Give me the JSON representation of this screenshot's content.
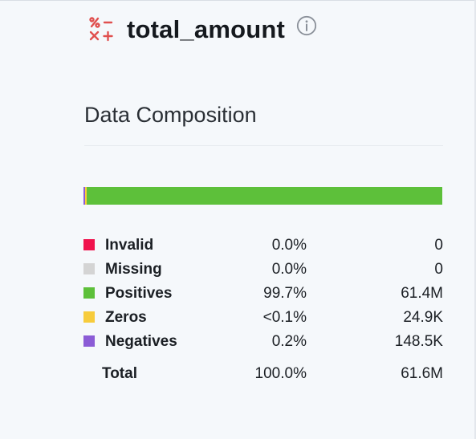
{
  "header": {
    "title": "total_amount",
    "type_icon": "numeric-ops-icon",
    "info_icon": "info-icon",
    "accent": "#e0504f"
  },
  "composition": {
    "title": "Data Composition",
    "bar": [
      {
        "name": "Invalid",
        "fraction": 0.0,
        "color": "#f0134d"
      },
      {
        "name": "Missing",
        "fraction": 0.0,
        "color": "#d4d4d4"
      },
      {
        "name": "Negatives",
        "fraction": 0.002,
        "color": "#8b5cd6"
      },
      {
        "name": "Zeros",
        "fraction": 0.0005,
        "color": "#f7cc3c"
      },
      {
        "name": "Positives",
        "fraction": 0.997,
        "color": "#5dc03a"
      }
    ],
    "legend": [
      {
        "label": "Invalid",
        "percent": "0.0%",
        "count": "0",
        "color": "#f0134d"
      },
      {
        "label": "Missing",
        "percent": "0.0%",
        "count": "0",
        "color": "#d4d4d4"
      },
      {
        "label": "Positives",
        "percent": "99.7%",
        "count": "61.4M",
        "color": "#5dc03a"
      },
      {
        "label": "Zeros",
        "percent": "<0.1%",
        "count": "24.9K",
        "color": "#f7cc3c"
      },
      {
        "label": "Negatives",
        "percent": "0.2%",
        "count": "148.5K",
        "color": "#8b5cd6"
      }
    ],
    "total": {
      "label": "Total",
      "percent": "100.0%",
      "count": "61.6M"
    }
  }
}
